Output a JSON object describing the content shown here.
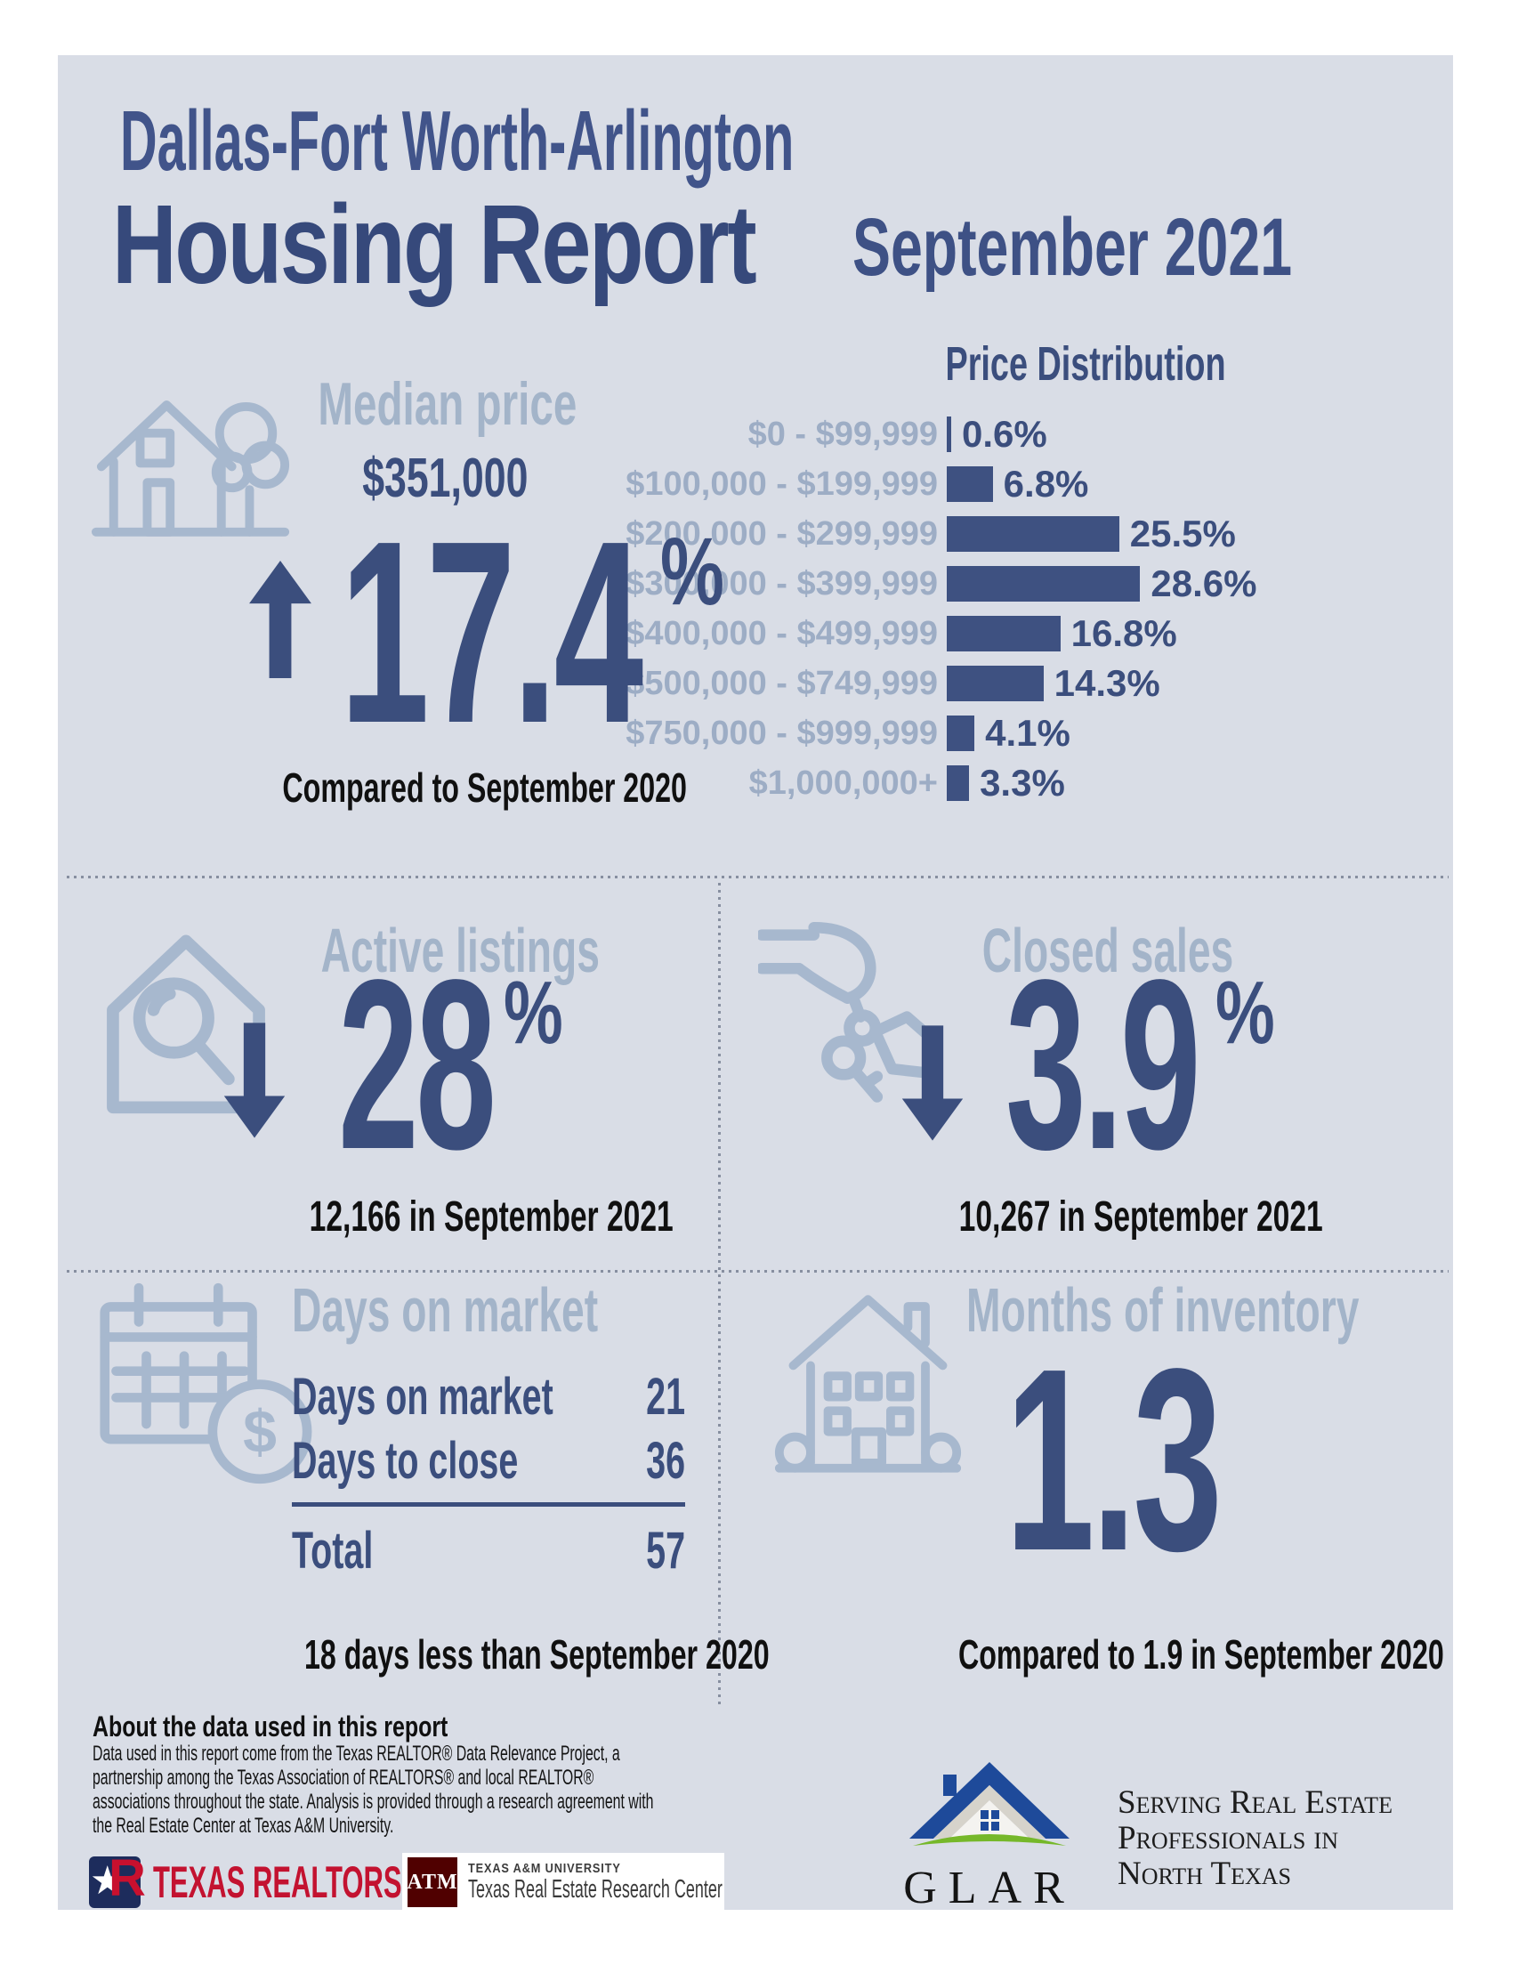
{
  "title": {
    "line1": "Dallas-Fort Worth-Arlington",
    "line2": "Housing Report",
    "period": "September 2021"
  },
  "misc": {
    "percent": "%"
  },
  "median_price": {
    "heading": "Median price",
    "value": "$351,000",
    "change": "17.4",
    "direction": "up",
    "caption": "Compared to September 2020"
  },
  "chart_data": {
    "type": "bar",
    "orientation": "horizontal",
    "title": "Price Distribution",
    "categories": [
      "$0 - $99,999",
      "$100,000 - $199,999",
      "$200,000 - $299,999",
      "$300,000 - $399,999",
      "$400,000 - $499,999",
      "$500,000 - $749,999",
      "$750,000 - $999,999",
      "$1,000,000+"
    ],
    "values": [
      0.6,
      6.8,
      25.5,
      28.6,
      16.8,
      14.3,
      4.1,
      3.3
    ],
    "value_labels": [
      "0.6%",
      "6.8%",
      "25.5%",
      "28.6%",
      "16.8%",
      "14.3%",
      "4.1%",
      "3.3%"
    ],
    "unit": "percent",
    "xlim": [
      0,
      30
    ],
    "grid": false,
    "bar_color": "#3e5181",
    "label_color": "#9dadc5"
  },
  "active_listings": {
    "heading": "Active listings",
    "change": "28",
    "direction": "down",
    "caption": "12,166 in September 2021"
  },
  "closed_sales": {
    "heading": "Closed sales",
    "change": "3.9",
    "direction": "down",
    "caption": "10,267 in September 2021"
  },
  "days_on_market": {
    "heading": "Days on market",
    "rows": [
      {
        "label": "Days on market",
        "value": "21"
      },
      {
        "label": "Days to close",
        "value": "36"
      }
    ],
    "total_label": "Total",
    "total_value": "57",
    "caption": "18 days less than September 2020"
  },
  "months_of_inventory": {
    "heading": "Months of inventory",
    "value": "1.3",
    "caption": "Compared to 1.9 in September 2020"
  },
  "about": {
    "heading": "About the data used in this report",
    "body": "Data used in this report come from the Texas REALTOR® Data Relevance Project, a partnership among the Texas Association of REALTORS® and local REALTOR® associations throughout the state. Analysis is provided through a research agreement with the Real Estate Center at Texas A&M University."
  },
  "logos": {
    "texas_realtors": {
      "name": "TEXAS REALTORS",
      "reg": "®",
      "monogram": "R"
    },
    "tamu": {
      "monogram": "ATM",
      "line1": "TEXAS A&M UNIVERSITY",
      "line2": "Texas Real Estate Research Center"
    },
    "glar": {
      "name": "GLAR",
      "tagline1": "Serving Real Estate",
      "tagline2": "Professionals in",
      "tagline3": "North Texas"
    }
  },
  "colors": {
    "background_panel": "#d9dde6",
    "navy": "#3b4e7d",
    "steel_heading": "#a3b4c9",
    "chart_label": "#9dadc5",
    "black_text": "#101010",
    "realtors_red": "#c8102e",
    "tamu_maroon": "#500000",
    "glar_blue": "#1e4a9a",
    "glar_green": "#76b82a"
  }
}
